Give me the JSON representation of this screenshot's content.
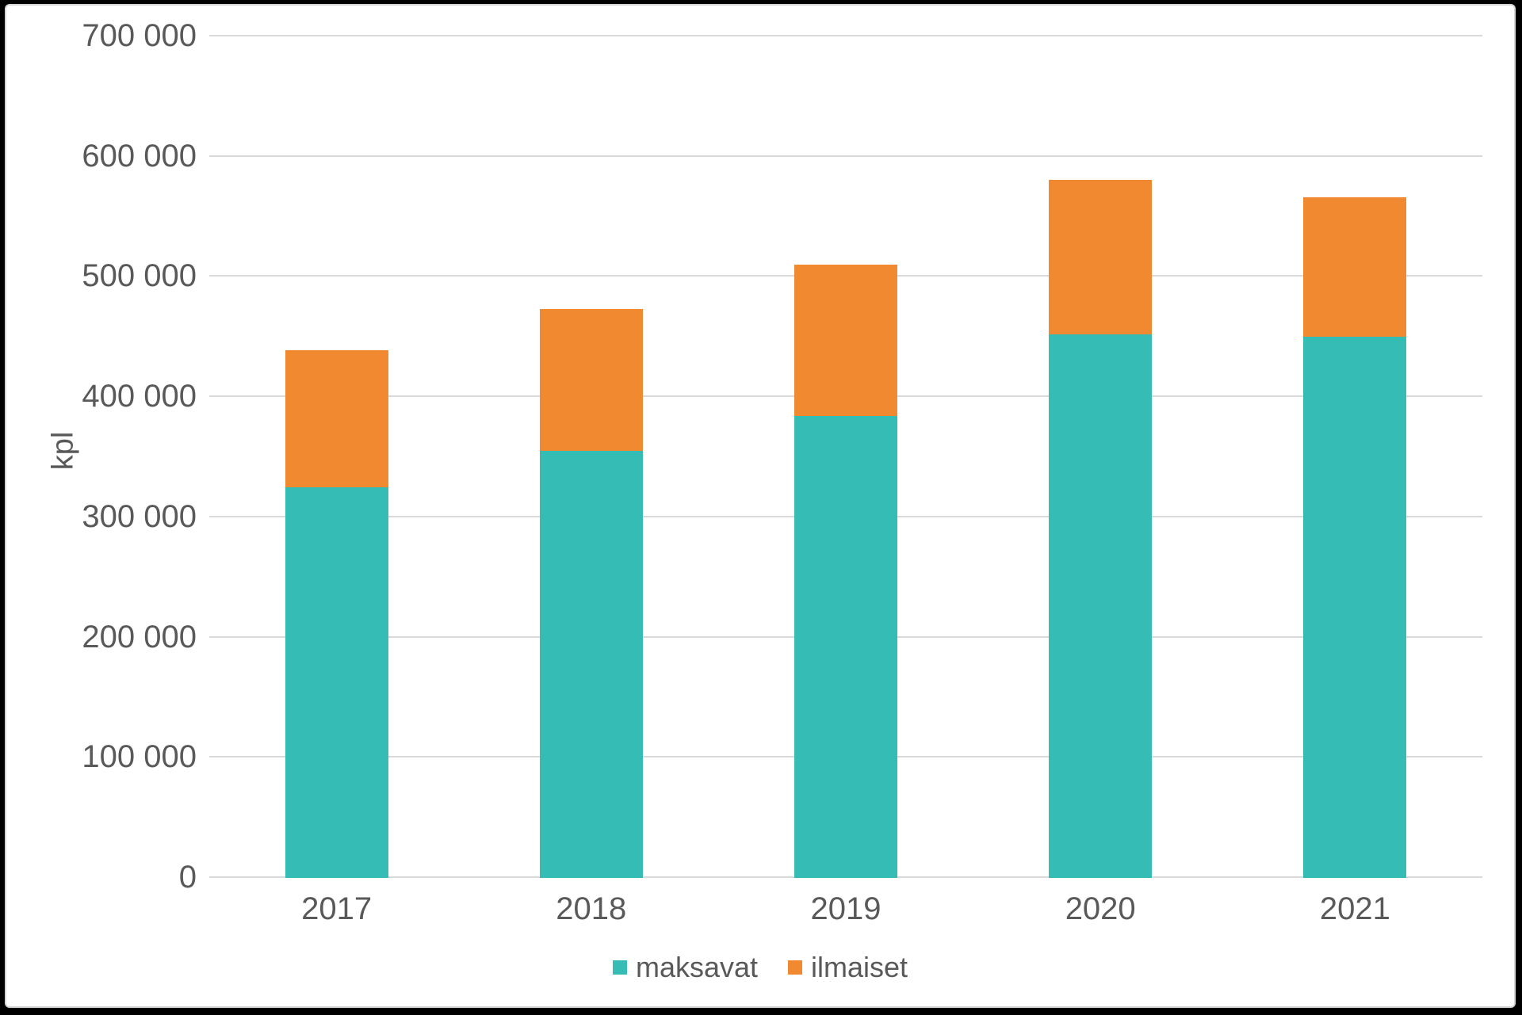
{
  "chart_data": {
    "type": "bar",
    "stacked": true,
    "title": "",
    "categories": [
      "2017",
      "2018",
      "2019",
      "2020",
      "2021"
    ],
    "series": [
      {
        "name": "maksavat",
        "color": "#35BCB4",
        "values": [
          325000,
          355000,
          384000,
          452000,
          450000
        ]
      },
      {
        "name": "ilmaiset",
        "color": "#F0892F",
        "values": [
          114000,
          118000,
          126000,
          129000,
          116000
        ]
      }
    ],
    "xlabel": "",
    "ylabel": "kpl",
    "ylim": [
      0,
      700000
    ],
    "yticks": [
      0,
      100000,
      200000,
      300000,
      400000,
      500000,
      600000,
      700000
    ],
    "ytick_labels": [
      "0",
      "100 000",
      "200 000",
      "300 000",
      "400 000",
      "500 000",
      "600 000",
      "700 000"
    ],
    "grid": true,
    "legend_position": "bottom"
  },
  "colors": {
    "gridline": "#D9D9D9",
    "axis_text": "#595959",
    "canvas_background": "#FFFFFF",
    "outer_frame": "#000000"
  }
}
